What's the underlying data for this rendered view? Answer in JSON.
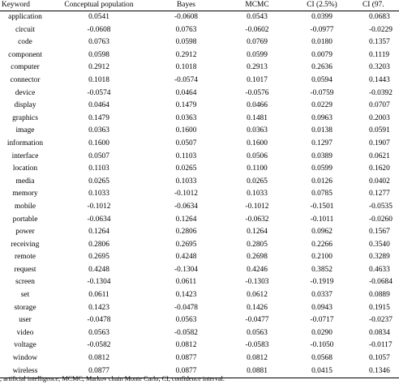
{
  "table": {
    "headers": {
      "keyword": "Keyword",
      "conceptual": "Conceptual population",
      "bayes": "Bayes",
      "mcmc": "MCMC",
      "ci_low": "CI (2.5%)",
      "ci_high": "CI (97."
    },
    "rows": [
      {
        "keyword": "application",
        "conceptual": "0.0541",
        "bayes": "-0.0608",
        "mcmc": "0.0543",
        "ci_low": "0.0399",
        "ci_high": "0.0683"
      },
      {
        "keyword": "circuit",
        "conceptual": "-0.0608",
        "bayes": "0.0763",
        "mcmc": "-0.0602",
        "ci_low": "-0.0977",
        "ci_high": "-0.0229"
      },
      {
        "keyword": "code",
        "conceptual": "0.0763",
        "bayes": "0.0598",
        "mcmc": "0.0769",
        "ci_low": "0.0180",
        "ci_high": "0.1357"
      },
      {
        "keyword": "component",
        "conceptual": "0.0598",
        "bayes": "0.2912",
        "mcmc": "0.0599",
        "ci_low": "0.0079",
        "ci_high": "0.1119"
      },
      {
        "keyword": "computer",
        "conceptual": "0.2912",
        "bayes": "0.1018",
        "mcmc": "0.2913",
        "ci_low": "0.2636",
        "ci_high": "0.3203"
      },
      {
        "keyword": "connector",
        "conceptual": "0.1018",
        "bayes": "-0.0574",
        "mcmc": "0.1017",
        "ci_low": "0.0594",
        "ci_high": "0.1443"
      },
      {
        "keyword": "device",
        "conceptual": "-0.0574",
        "bayes": "0.0464",
        "mcmc": "-0.0576",
        "ci_low": "-0.0759",
        "ci_high": "-0.0392"
      },
      {
        "keyword": "display",
        "conceptual": "0.0464",
        "bayes": "0.1479",
        "mcmc": "0.0466",
        "ci_low": "0.0229",
        "ci_high": "0.0707"
      },
      {
        "keyword": "graphics",
        "conceptual": "0.1479",
        "bayes": "0.0363",
        "mcmc": "0.1481",
        "ci_low": "0.0963",
        "ci_high": "0.2003"
      },
      {
        "keyword": "image",
        "conceptual": "0.0363",
        "bayes": "0.1600",
        "mcmc": "0.0363",
        "ci_low": "0.0138",
        "ci_high": "0.0591"
      },
      {
        "keyword": "information",
        "conceptual": "0.1600",
        "bayes": "0.0507",
        "mcmc": "0.1600",
        "ci_low": "0.1297",
        "ci_high": "0.1907"
      },
      {
        "keyword": "interface",
        "conceptual": "0.0507",
        "bayes": "0.1103",
        "mcmc": "0.0506",
        "ci_low": "0.0389",
        "ci_high": "0.0621"
      },
      {
        "keyword": "location",
        "conceptual": "0.1103",
        "bayes": "0.0265",
        "mcmc": "0.1100",
        "ci_low": "0.0599",
        "ci_high": "0.1620"
      },
      {
        "keyword": "media",
        "conceptual": "0.0265",
        "bayes": "0.1033",
        "mcmc": "0.0265",
        "ci_low": "0.0126",
        "ci_high": "0.0402"
      },
      {
        "keyword": "memory",
        "conceptual": "0.1033",
        "bayes": "-0.1012",
        "mcmc": "0.1033",
        "ci_low": "0.0785",
        "ci_high": "0.1277"
      },
      {
        "keyword": "mobile",
        "conceptual": "-0.1012",
        "bayes": "-0.0634",
        "mcmc": "-0.1012",
        "ci_low": "-0.1501",
        "ci_high": "-0.0535"
      },
      {
        "keyword": "portable",
        "conceptual": "-0.0634",
        "bayes": "0.1264",
        "mcmc": "-0.0632",
        "ci_low": "-0.1011",
        "ci_high": "-0.0260"
      },
      {
        "keyword": "power",
        "conceptual": "0.1264",
        "bayes": "0.2806",
        "mcmc": "0.1264",
        "ci_low": "0.0962",
        "ci_high": "0.1567"
      },
      {
        "keyword": "receiving",
        "conceptual": "0.2806",
        "bayes": "0.2695",
        "mcmc": "0.2805",
        "ci_low": "0.2266",
        "ci_high": "0.3540"
      },
      {
        "keyword": "remote",
        "conceptual": "0.2695",
        "bayes": "0.4248",
        "mcmc": "0.2698",
        "ci_low": "0.2100",
        "ci_high": "0.3289"
      },
      {
        "keyword": "request",
        "conceptual": "0.4248",
        "bayes": "-0.1304",
        "mcmc": "0.4246",
        "ci_low": "0.3852",
        "ci_high": "0.4633"
      },
      {
        "keyword": "screen",
        "conceptual": "-0.1304",
        "bayes": "0.0611",
        "mcmc": "-0.1303",
        "ci_low": "-0.1919",
        "ci_high": "-0.0684"
      },
      {
        "keyword": "set",
        "conceptual": "0.0611",
        "bayes": "0.1423",
        "mcmc": "0.0612",
        "ci_low": "0.0337",
        "ci_high": "0.0889"
      },
      {
        "keyword": "storage",
        "conceptual": "0.1423",
        "bayes": "-0.0478",
        "mcmc": "0.1426",
        "ci_low": "0.0943",
        "ci_high": "0.1915"
      },
      {
        "keyword": "user",
        "conceptual": "-0.0478",
        "bayes": "0.0563",
        "mcmc": "-0.0477",
        "ci_low": "-0.0717",
        "ci_high": "-0.0237"
      },
      {
        "keyword": "video",
        "conceptual": "0.0563",
        "bayes": "-0.0582",
        "mcmc": "0.0563",
        "ci_low": "0.0290",
        "ci_high": "0.0834"
      },
      {
        "keyword": "voltage",
        "conceptual": "-0.0582",
        "bayes": "0.0812",
        "mcmc": "-0.0583",
        "ci_low": "-0.1050",
        "ci_high": "-0.0117"
      },
      {
        "keyword": "window",
        "conceptual": "0.0812",
        "bayes": "0.0877",
        "mcmc": "0.0812",
        "ci_low": "0.0568",
        "ci_high": "0.1057"
      },
      {
        "keyword": "wireless",
        "conceptual": "0.0877",
        "bayes": "0.0877",
        "mcmc": "0.0881",
        "ci_low": "0.0415",
        "ci_high": "0.1346"
      }
    ]
  },
  "footnote": ", artificial intelligence; MCMC, Markov chain Monte Carlo; CI, confidence interval."
}
